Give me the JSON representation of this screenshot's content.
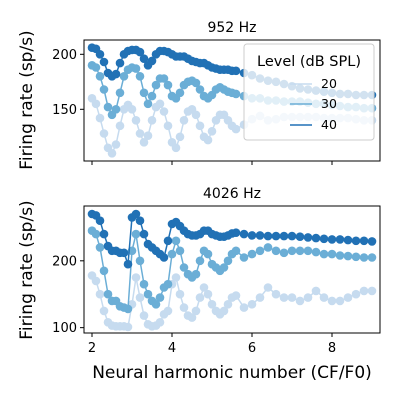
{
  "chart_data": [
    {
      "type": "line",
      "title": "952 Hz",
      "xlabel": "",
      "ylabel": "Firing rate (sp/s)",
      "xlim": [
        1.8,
        9.2
      ],
      "ylim": [
        103,
        213
      ],
      "yticks": [
        150,
        200
      ],
      "xticks": [
        2,
        4,
        6,
        8
      ],
      "show_xtick_labels": false,
      "legend": {
        "title": "Level (dB SPL)",
        "placement": "top-right",
        "entries": [
          "20",
          "30",
          "40"
        ]
      },
      "series": [
        {
          "name": "20",
          "color": "#c6dbef",
          "x": [
            2.0,
            2.1,
            2.2,
            2.3,
            2.4,
            2.5,
            2.6,
            2.7,
            2.8,
            2.9,
            3.0,
            3.1,
            3.2,
            3.3,
            3.4,
            3.5,
            3.6,
            3.7,
            3.8,
            3.9,
            4.0,
            4.1,
            4.2,
            4.3,
            4.4,
            4.5,
            4.6,
            4.7,
            4.8,
            4.9,
            5.0,
            5.1,
            5.2,
            5.3,
            5.4,
            5.5,
            5.6,
            5.8,
            6.0,
            6.2,
            6.4,
            6.6,
            6.8,
            7.0,
            7.2,
            7.4,
            7.6,
            7.8,
            8.0,
            8.2,
            8.4,
            8.6,
            8.8,
            9.0
          ],
          "y": [
            160,
            155,
            142,
            128,
            115,
            110,
            118,
            135,
            150,
            154,
            150,
            140,
            128,
            120,
            126,
            140,
            152,
            155,
            148,
            135,
            120,
            115,
            125,
            140,
            148,
            150,
            145,
            135,
            125,
            122,
            130,
            140,
            145,
            145,
            140,
            135,
            132,
            136,
            141,
            144,
            140,
            141,
            143,
            143,
            143,
            143,
            143,
            142,
            142,
            142,
            142,
            141,
            140,
            140
          ]
        },
        {
          "name": "30",
          "color": "#6baed6",
          "x": [
            2.0,
            2.1,
            2.2,
            2.3,
            2.4,
            2.5,
            2.6,
            2.7,
            2.8,
            2.9,
            3.0,
            3.1,
            3.2,
            3.3,
            3.4,
            3.5,
            3.6,
            3.7,
            3.8,
            3.9,
            4.0,
            4.1,
            4.2,
            4.3,
            4.4,
            4.5,
            4.6,
            4.7,
            4.8,
            4.9,
            5.0,
            5.1,
            5.2,
            5.3,
            5.4,
            5.5,
            5.6,
            5.8,
            6.0,
            6.2,
            6.4,
            6.6,
            6.8,
            7.0,
            7.2,
            7.4,
            7.6,
            7.8,
            8.0,
            8.2,
            8.4,
            8.6,
            8.8,
            9.0
          ],
          "y": [
            190,
            188,
            180,
            168,
            152,
            145,
            150,
            165,
            180,
            186,
            188,
            187,
            180,
            165,
            155,
            162,
            172,
            178,
            178,
            172,
            162,
            160,
            165,
            172,
            175,
            176,
            174,
            168,
            162,
            160,
            163,
            168,
            170,
            168,
            166,
            165,
            164,
            162,
            160,
            160,
            158,
            158,
            157,
            157,
            157,
            156,
            155,
            155,
            154,
            153,
            152,
            152,
            151,
            151
          ]
        },
        {
          "name": "40",
          "color": "#2171b5",
          "x": [
            2.0,
            2.1,
            2.2,
            2.3,
            2.4,
            2.5,
            2.6,
            2.7,
            2.8,
            2.9,
            3.0,
            3.1,
            3.2,
            3.3,
            3.4,
            3.5,
            3.6,
            3.7,
            3.8,
            3.9,
            4.0,
            4.1,
            4.2,
            4.3,
            4.4,
            4.5,
            4.6,
            4.7,
            4.8,
            4.9,
            5.0,
            5.1,
            5.2,
            5.3,
            5.4,
            5.5,
            5.6,
            5.8,
            6.0,
            6.2,
            6.4,
            6.6,
            6.8,
            7.0,
            7.2,
            7.4,
            7.6,
            7.8,
            8.0,
            8.2,
            8.4,
            8.6,
            8.8,
            9.0
          ],
          "y": [
            206,
            205,
            200,
            193,
            183,
            180,
            182,
            192,
            200,
            203,
            204,
            204,
            202,
            196,
            190,
            194,
            200,
            203,
            203,
            202,
            200,
            198,
            198,
            198,
            196,
            194,
            193,
            192,
            192,
            190,
            188,
            187,
            186,
            186,
            186,
            185,
            185,
            183,
            181,
            178,
            176,
            175,
            173,
            171,
            169,
            168,
            167,
            166,
            165,
            164,
            164,
            163,
            163,
            163
          ]
        }
      ]
    },
    {
      "type": "line",
      "title": "4026 Hz",
      "xlabel": "Neural harmonic number (CF/F0)",
      "ylabel": "Firing rate (sp/s)",
      "xlim": [
        1.8,
        9.2
      ],
      "ylim": [
        92,
        282
      ],
      "yticks": [
        100,
        200
      ],
      "xticks": [
        2,
        4,
        6,
        8
      ],
      "show_xtick_labels": true,
      "series": [
        {
          "name": "20",
          "color": "#c6dbef",
          "x": [
            2.0,
            2.1,
            2.2,
            2.3,
            2.4,
            2.5,
            2.6,
            2.7,
            2.8,
            2.9,
            3.0,
            3.1,
            3.2,
            3.3,
            3.4,
            3.5,
            3.6,
            3.7,
            3.8,
            3.9,
            4.0,
            4.1,
            4.2,
            4.3,
            4.4,
            4.5,
            4.6,
            4.7,
            4.8,
            4.9,
            5.0,
            5.1,
            5.2,
            5.3,
            5.4,
            5.5,
            5.6,
            5.8,
            6.0,
            6.2,
            6.4,
            6.6,
            6.8,
            7.0,
            7.2,
            7.4,
            7.6,
            7.8,
            8.0,
            8.2,
            8.4,
            8.6,
            8.8,
            9.0
          ],
          "y": [
            178,
            170,
            150,
            125,
            108,
            103,
            102,
            102,
            102,
            101,
            135,
            175,
            145,
            118,
            105,
            102,
            103,
            108,
            120,
            125,
            165,
            175,
            150,
            130,
            118,
            115,
            125,
            145,
            160,
            150,
            135,
            125,
            120,
            125,
            135,
            145,
            148,
            130,
            135,
            145,
            160,
            150,
            145,
            145,
            140,
            145,
            155,
            145,
            140,
            140,
            145,
            150,
            155,
            155
          ]
        },
        {
          "name": "30",
          "color": "#6baed6",
          "x": [
            2.0,
            2.1,
            2.2,
            2.3,
            2.4,
            2.5,
            2.6,
            2.7,
            2.8,
            2.9,
            3.0,
            3.1,
            3.2,
            3.3,
            3.4,
            3.5,
            3.6,
            3.7,
            3.8,
            3.9,
            4.0,
            4.1,
            4.2,
            4.3,
            4.4,
            4.5,
            4.6,
            4.7,
            4.8,
            4.9,
            5.0,
            5.1,
            5.2,
            5.3,
            5.4,
            5.5,
            5.6,
            5.8,
            6.0,
            6.2,
            6.4,
            6.6,
            6.8,
            7.0,
            7.2,
            7.4,
            7.6,
            7.8,
            8.0,
            8.2,
            8.4,
            8.6,
            8.8,
            9.0
          ],
          "y": [
            245,
            240,
            220,
            185,
            150,
            140,
            140,
            132,
            130,
            128,
            215,
            240,
            200,
            165,
            150,
            140,
            135,
            145,
            160,
            165,
            210,
            230,
            215,
            190,
            180,
            175,
            180,
            200,
            215,
            210,
            195,
            190,
            185,
            190,
            200,
            210,
            215,
            205,
            210,
            215,
            220,
            215,
            212,
            215,
            215,
            215,
            213,
            210,
            210,
            208,
            207,
            206,
            205,
            205
          ]
        },
        {
          "name": "40",
          "color": "#2171b5",
          "x": [
            2.0,
            2.1,
            2.2,
            2.3,
            2.4,
            2.5,
            2.6,
            2.7,
            2.8,
            2.9,
            3.0,
            3.1,
            3.2,
            3.3,
            3.4,
            3.5,
            3.6,
            3.7,
            3.8,
            3.9,
            4.0,
            4.1,
            4.2,
            4.3,
            4.4,
            4.5,
            4.6,
            4.7,
            4.8,
            4.9,
            5.0,
            5.1,
            5.2,
            5.3,
            5.4,
            5.5,
            5.6,
            5.8,
            6.0,
            6.2,
            6.4,
            6.6,
            6.8,
            7.0,
            7.2,
            7.4,
            7.6,
            7.8,
            8.0,
            8.2,
            8.4,
            8.6,
            8.8,
            9.0
          ],
          "y": [
            270,
            268,
            260,
            240,
            222,
            215,
            215,
            212,
            212,
            195,
            265,
            270,
            260,
            240,
            225,
            220,
            215,
            210,
            205,
            230,
            255,
            258,
            252,
            245,
            240,
            238,
            238,
            240,
            245,
            245,
            240,
            238,
            236,
            236,
            238,
            241,
            242,
            240,
            238,
            238,
            237,
            237,
            237,
            237,
            236,
            235,
            234,
            233,
            232,
            232,
            231,
            230,
            230,
            229
          ]
        }
      ]
    }
  ]
}
